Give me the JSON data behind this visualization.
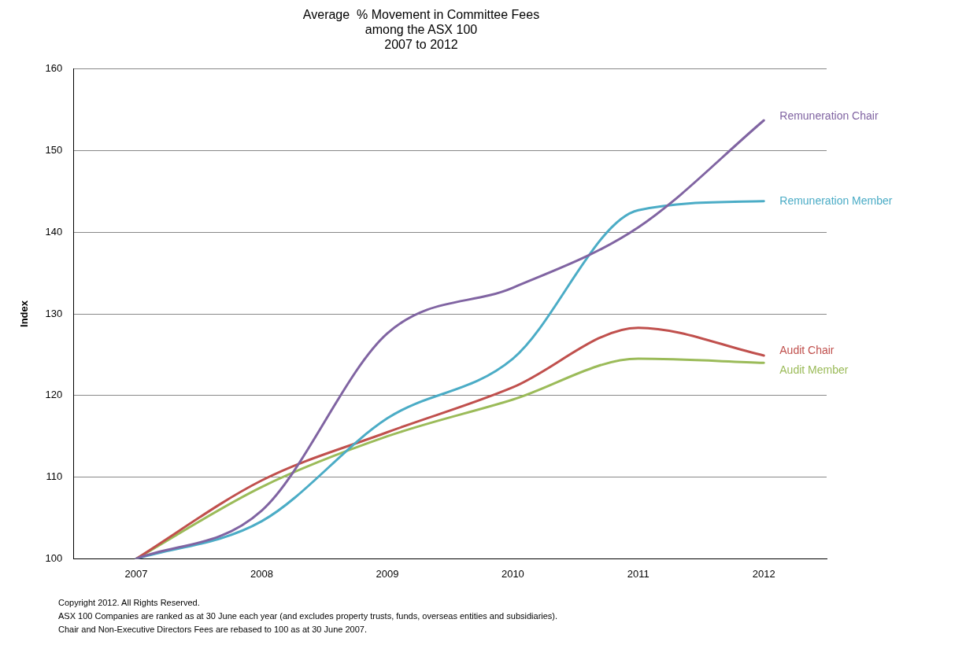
{
  "chart_data": {
    "type": "line",
    "title": "Average  % Movement in Committee Fees\namong the ASX 100\n2007 to 2012",
    "ylabel": "Index",
    "categories": [
      "2007",
      "2008",
      "2009",
      "2010",
      "2011",
      "2012"
    ],
    "series": [
      {
        "name": "Remuneration Chair",
        "color": "#8064a2",
        "values": [
          100,
          105.9,
          127.6,
          133.2,
          140.6,
          153.7
        ]
      },
      {
        "name": "Remuneration Member",
        "color": "#4bacc6",
        "values": [
          100,
          104.6,
          117.2,
          124.5,
          142.7,
          143.8
        ]
      },
      {
        "name": "Audit Chair",
        "color": "#c0504d",
        "values": [
          100,
          109.6,
          115.5,
          121,
          128.3,
          124.9
        ]
      },
      {
        "name": "Audit Member",
        "color": "#9bbb59",
        "values": [
          100,
          108.8,
          115,
          119.5,
          124.5,
          124
        ]
      }
    ],
    "ylim": [
      100,
      160
    ],
    "yticks": [
      100,
      110,
      120,
      130,
      140,
      150,
      160
    ],
    "grid": "y",
    "legend": false,
    "marker": "none",
    "line_style": "solid",
    "annotations": [
      "Copyright 2012. All Rights Reserved.",
      "ASX 100 Companies are ranked as at 30 June each year (and excludes property trusts, funds, overseas entities and subsidiaries).",
      "Chair and Non-Executive Directors Fees are rebased to 100 as at 30 June 2007."
    ]
  }
}
